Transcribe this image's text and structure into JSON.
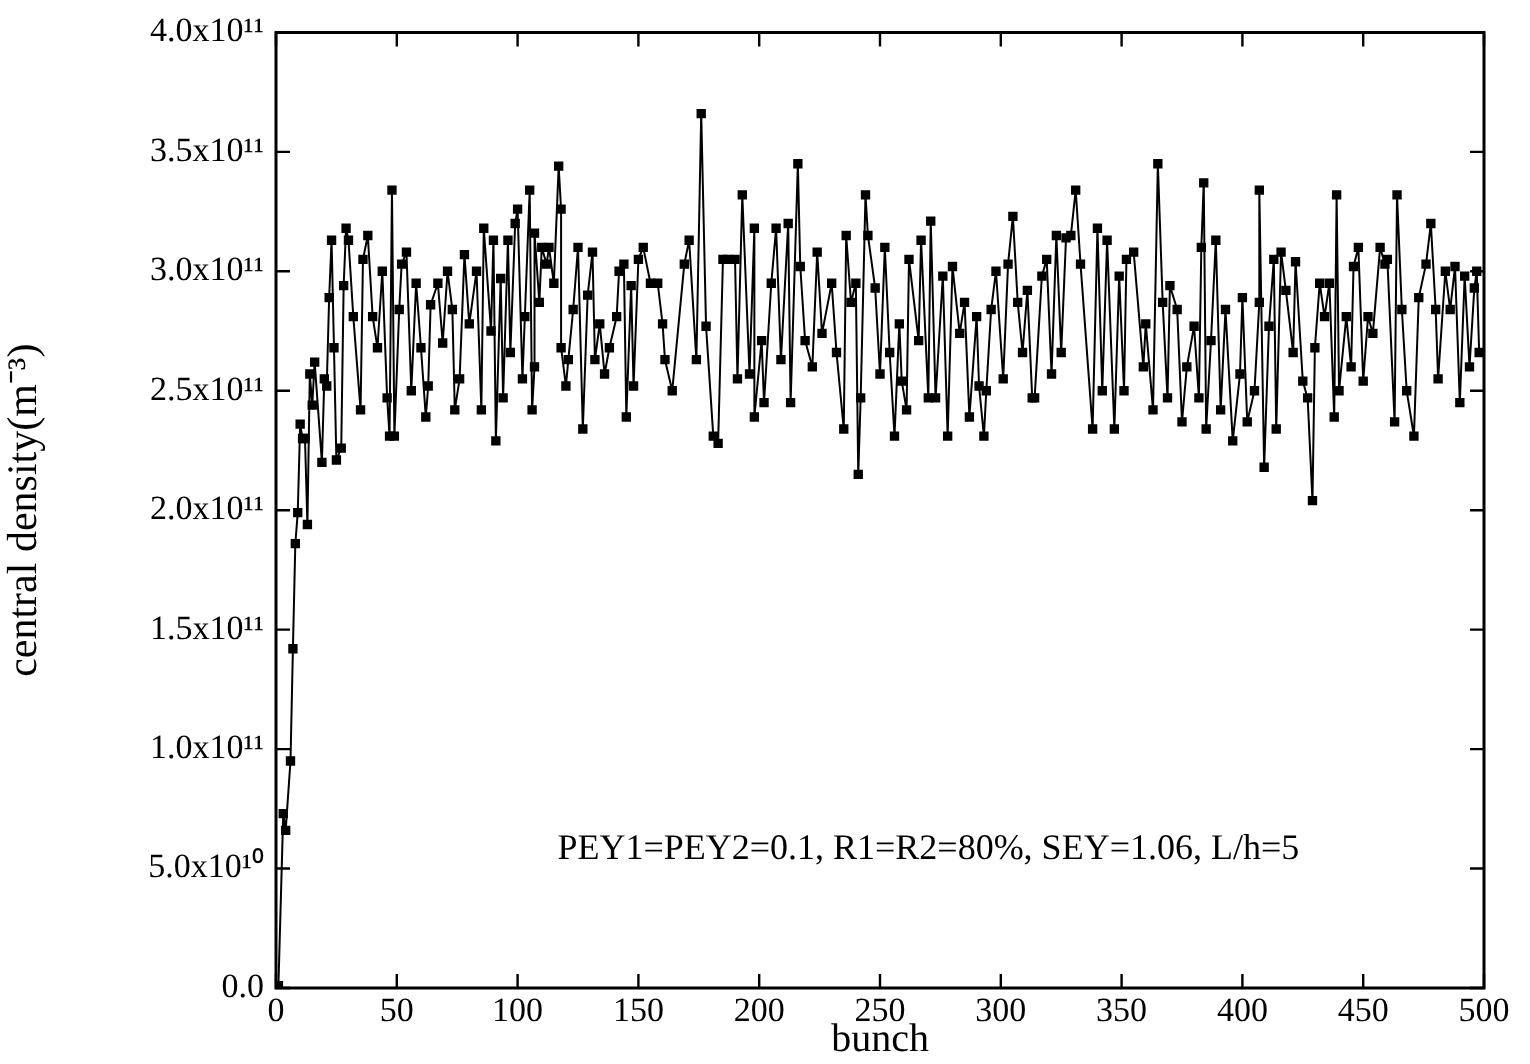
{
  "chart_data": {
    "type": "line",
    "xlabel": "bunch",
    "ylabel": "central density(m⁻³)",
    "marker": "square",
    "line_style": "solid",
    "grid": false,
    "legend": false,
    "xlim": [
      0,
      500
    ],
    "xticks": [
      0,
      50,
      100,
      150,
      200,
      250,
      300,
      350,
      400,
      450,
      500
    ],
    "ylim": [
      0,
      400000000000.0
    ],
    "yticks": [
      {
        "value": 0,
        "label": "0.0"
      },
      {
        "value": 50000000000.0,
        "label": "5.0x10¹⁰"
      },
      {
        "value": 100000000000.0,
        "label": "1.0x10¹¹"
      },
      {
        "value": 150000000000.0,
        "label": "1.5x10¹¹"
      },
      {
        "value": 200000000000.0,
        "label": "2.0x10¹¹"
      },
      {
        "value": 250000000000.0,
        "label": "2.5x10¹¹"
      },
      {
        "value": 300000000000.0,
        "label": "3.0x10¹¹"
      },
      {
        "value": 350000000000.0,
        "label": "3.5x10¹¹"
      },
      {
        "value": 400000000000.0,
        "label": "4.0x10¹¹"
      }
    ],
    "annotations": [
      "PEY1=PEY2=0.1, R1=R2=80%, SEY=1.06, L/h=5"
    ],
    "series": [
      {
        "color": "#000000",
        "x": [
          1,
          3,
          4,
          6,
          7,
          8,
          9,
          10,
          11,
          12,
          13,
          14,
          15,
          16,
          19,
          20,
          21,
          22,
          23,
          24,
          25,
          27,
          28,
          29,
          30,
          32,
          35,
          36,
          38,
          40,
          42,
          44,
          46,
          47,
          48,
          49,
          51,
          52,
          54,
          56,
          58,
          60,
          62,
          63,
          64,
          67,
          69,
          71,
          73,
          74,
          76,
          78,
          80,
          83,
          85,
          86,
          89,
          90,
          91,
          93,
          94,
          96,
          97,
          99,
          100,
          102,
          103,
          105,
          106,
          107,
          107,
          109,
          110,
          112,
          113,
          115,
          117,
          118,
          118,
          120,
          121,
          123,
          125,
          127,
          129,
          131,
          132,
          134,
          136,
          138,
          141,
          142,
          144,
          145,
          147,
          148,
          150,
          152,
          155,
          158,
          160,
          161,
          164,
          169,
          171,
          174,
          176,
          178,
          181,
          183,
          185,
          187,
          190,
          191,
          193,
          196,
          198,
          198,
          201,
          202,
          205,
          207,
          209,
          212,
          213,
          216,
          217,
          219,
          222,
          224,
          226,
          230,
          232,
          235,
          236,
          238,
          240,
          241,
          242,
          244,
          245,
          248,
          250,
          252,
          254,
          256,
          258,
          259,
          261,
          262,
          266,
          267,
          270,
          271,
          273,
          276,
          278,
          280,
          283,
          285,
          287,
          290,
          291,
          293,
          294,
          296,
          298,
          301,
          303,
          305,
          307,
          309,
          311,
          313,
          314,
          317,
          319,
          321,
          323,
          325,
          327,
          329,
          331,
          333,
          338,
          340,
          342,
          344,
          347,
          349,
          351,
          352,
          355,
          359,
          360,
          363,
          365,
          367,
          369,
          370,
          373,
          375,
          377,
          380,
          382,
          383,
          384,
          385,
          387,
          389,
          391,
          393,
          396,
          399,
          400,
          402,
          405,
          407,
          407,
          409,
          411,
          413,
          414,
          416,
          418,
          421,
          422,
          425,
          427,
          429,
          430,
          432,
          434,
          436,
          438,
          439,
          440,
          443,
          445,
          446,
          448,
          450,
          452,
          454,
          457,
          459,
          460,
          463,
          464,
          466,
          468,
          471,
          473,
          476,
          478,
          480,
          481,
          484,
          486,
          488,
          490,
          492,
          494,
          496,
          497,
          498
        ],
        "values": [
          1000000000.0,
          73000000000.0,
          66000000000.0,
          95000000000.0,
          142000000000.0,
          186000000000.0,
          199000000000.0,
          236000000000.0,
          230000000000.0,
          230000000000.0,
          194000000000.0,
          257000000000.0,
          244000000000.0,
          262000000000.0,
          220000000000.0,
          255000000000.0,
          252000000000.0,
          289000000000.0,
          313000000000.0,
          268000000000.0,
          221000000000.0,
          226000000000.0,
          294000000000.0,
          318000000000.0,
          313000000000.0,
          281000000000.0,
          242000000000.0,
          305000000000.0,
          315000000000.0,
          281000000000.0,
          268000000000.0,
          300000000000.0,
          247000000000.0,
          231000000000.0,
          334000000000.0,
          231000000000.0,
          284000000000.0,
          303000000000.0,
          308000000000.0,
          250000000000.0,
          295000000000.0,
          268000000000.0,
          239000000000.0,
          252000000000.0,
          286000000000.0,
          295000000000.0,
          270000000000.0,
          300000000000.0,
          284000000000.0,
          242000000000.0,
          255000000000.0,
          307000000000.0,
          278000000000.0,
          300000000000.0,
          242000000000.0,
          318000000000.0,
          275000000000.0,
          313000000000.0,
          229000000000.0,
          297000000000.0,
          247000000000.0,
          313000000000.0,
          266000000000.0,
          320000000000.0,
          326000000000.0,
          255000000000.0,
          281000000000.0,
          334000000000.0,
          242000000000.0,
          260000000000.0,
          316000000000.0,
          287000000000.0,
          310000000000.0,
          303000000000.0,
          310000000000.0,
          295000000000.0,
          344000000000.0,
          326000000000.0,
          268000000000.0,
          252000000000.0,
          263000000000.0,
          284000000000.0,
          310000000000.0,
          234000000000.0,
          290000000000.0,
          308000000000.0,
          263000000000.0,
          278000000000.0,
          257000000000.0,
          268000000000.0,
          281000000000.0,
          300000000000.0,
          303000000000.0,
          239000000000.0,
          294000000000.0,
          252000000000.0,
          305000000000.0,
          310000000000.0,
          295000000000.0,
          295000000000.0,
          278000000000.0,
          263000000000.0,
          250000000000.0,
          303000000000.0,
          313000000000.0,
          263000000000.0,
          366000000000.0,
          277000000000.0,
          231000000000.0,
          228000000000.0,
          305000000000.0,
          305000000000.0,
          305000000000.0,
          255000000000.0,
          332000000000.0,
          257000000000.0,
          318000000000.0,
          239000000000.0,
          271000000000.0,
          245000000000.0,
          295000000000.0,
          318000000000.0,
          263000000000.0,
          320000000000.0,
          245000000000.0,
          345000000000.0,
          302000000000.0,
          271000000000.0,
          260000000000.0,
          308000000000.0,
          274000000000.0,
          295000000000.0,
          266000000000.0,
          234000000000.0,
          315000000000.0,
          287000000000.0,
          295000000000.0,
          215000000000.0,
          247000000000.0,
          332000000000.0,
          315000000000.0,
          293000000000.0,
          257000000000.0,
          310000000000.0,
          266000000000.0,
          231000000000.0,
          278000000000.0,
          254000000000.0,
          242000000000.0,
          305000000000.0,
          271000000000.0,
          313000000000.0,
          247000000000.0,
          321000000000.0,
          247000000000.0,
          298000000000.0,
          231000000000.0,
          302000000000.0,
          274000000000.0,
          287000000000.0,
          239000000000.0,
          281000000000.0,
          252000000000.0,
          231000000000.0,
          250000000000.0,
          284000000000.0,
          300000000000.0,
          255000000000.0,
          303000000000.0,
          323000000000.0,
          287000000000.0,
          266000000000.0,
          292000000000.0,
          247000000000.0,
          247000000000.0,
          298000000000.0,
          305000000000.0,
          257000000000.0,
          315000000000.0,
          266000000000.0,
          314000000000.0,
          315000000000.0,
          334000000000.0,
          303000000000.0,
          234000000000.0,
          318000000000.0,
          250000000000.0,
          313000000000.0,
          234000000000.0,
          298000000000.0,
          250000000000.0,
          305000000000.0,
          308000000000.0,
          260000000000.0,
          278000000000.0,
          242000000000.0,
          345000000000.0,
          287000000000.0,
          247000000000.0,
          294000000000.0,
          284000000000.0,
          237000000000.0,
          260000000000.0,
          277000000000.0,
          247000000000.0,
          310000000000.0,
          337000000000.0,
          234000000000.0,
          271000000000.0,
          313000000000.0,
          242000000000.0,
          284000000000.0,
          229000000000.0,
          257000000000.0,
          289000000000.0,
          237000000000.0,
          250000000000.0,
          287000000000.0,
          334000000000.0,
          218000000000.0,
          277000000000.0,
          305000000000.0,
          234000000000.0,
          308000000000.0,
          292000000000.0,
          266000000000.0,
          304000000000.0,
          254000000000.0,
          247000000000.0,
          204000000000.0,
          268000000000.0,
          295000000000.0,
          281000000000.0,
          295000000000.0,
          239000000000.0,
          332000000000.0,
          250000000000.0,
          281000000000.0,
          260000000000.0,
          302000000000.0,
          310000000000.0,
          254000000000.0,
          281000000000.0,
          274000000000.0,
          310000000000.0,
          303000000000.0,
          305000000000.0,
          237000000000.0,
          332000000000.0,
          284000000000.0,
          250000000000.0,
          231000000000.0,
          289000000000.0,
          303000000000.0,
          320000000000.0,
          284000000000.0,
          255000000000.0,
          300000000000.0,
          284000000000.0,
          302000000000.0,
          245000000000.0,
          298000000000.0,
          260000000000.0,
          293000000000.0,
          300000000000.0,
          266000000000.0
        ]
      }
    ]
  }
}
